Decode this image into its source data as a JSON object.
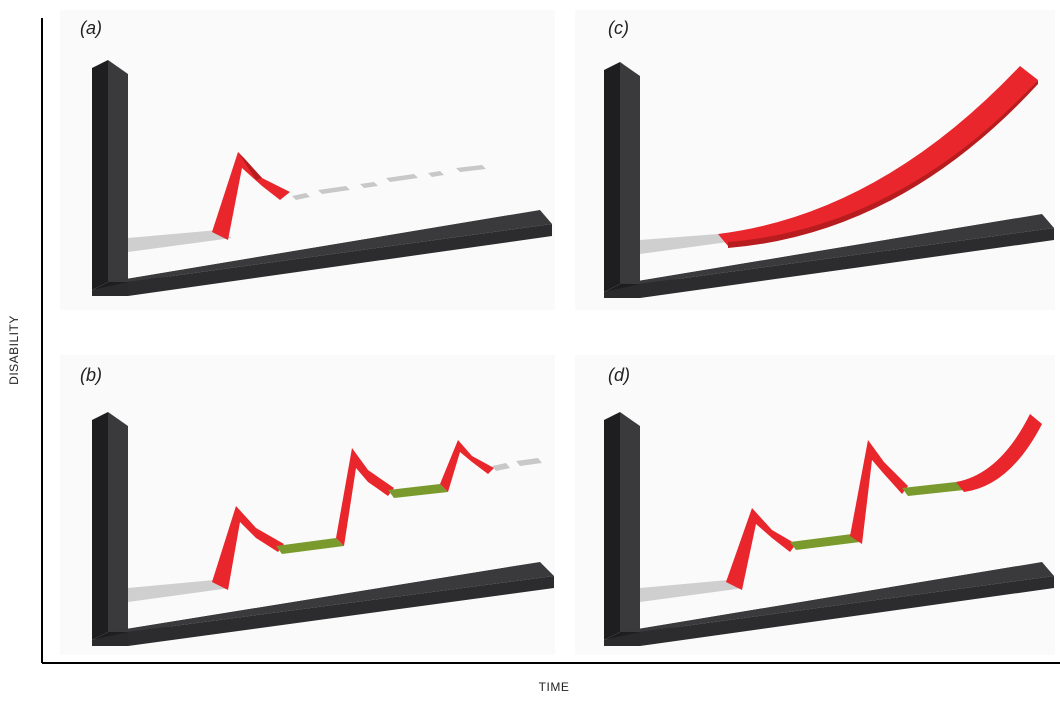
{
  "figure": {
    "y_axis_label": "DISABILITY",
    "x_axis_label": "TIME"
  },
  "panels": [
    {
      "id": "a",
      "label": "(a)",
      "pattern": "relapse-then-unknown"
    },
    {
      "id": "b",
      "label": "(b)",
      "pattern": "relapsing-remitting-then-unknown"
    },
    {
      "id": "c",
      "label": "(c)",
      "pattern": "progressive"
    },
    {
      "id": "d",
      "label": "(d)",
      "pattern": "relapsing-remitting-then-progressive"
    }
  ],
  "colors": {
    "axis_bar": "#3a3a3c",
    "axis_bar_dark": "#1e1e20",
    "baseline": "#cfcfcf",
    "relapse": "#e8262b",
    "relapse_dark": "#b71c1f",
    "remission": "#7a9a2e",
    "remission_dark": "#5b7420",
    "dashed_unknown": "#c8c8c8",
    "frame": "#000000"
  }
}
